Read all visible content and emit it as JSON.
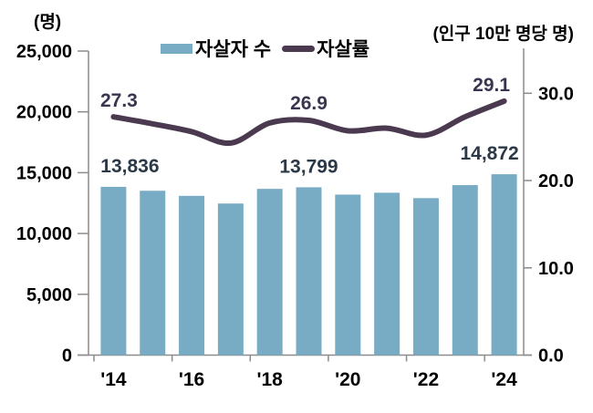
{
  "header": {
    "left_axis_unit": "(명)",
    "right_axis_unit": "(인구 10만 명당 명)"
  },
  "chart_data": {
    "type": "combo-bar-line",
    "categories": [
      "'14",
      "'15",
      "'16",
      "'17",
      "'18",
      "'19",
      "'20",
      "'21",
      "'22",
      "'23",
      "'24"
    ],
    "x_tick_labels": [
      "'14",
      "'16",
      "'18",
      "'20",
      "'22",
      "'24"
    ],
    "series": [
      {
        "name": "자살자 수",
        "type": "bar",
        "axis": "left",
        "color": "#78ACC4",
        "label_color": "#2A3847",
        "values": [
          13836,
          13513,
          13092,
          12463,
          13670,
          13799,
          13195,
          13352,
          12906,
          13978,
          14872
        ],
        "data_labels": [
          {
            "index": 0,
            "text": "13,836"
          },
          {
            "index": 5,
            "text": "13,799"
          },
          {
            "index": 10,
            "text": "14,872"
          }
        ]
      },
      {
        "name": "자살률",
        "type": "line",
        "axis": "right",
        "color": "#4A394F",
        "label_color": "#3B3450",
        "values": [
          27.3,
          26.5,
          25.6,
          24.3,
          26.6,
          26.9,
          25.7,
          26.0,
          25.2,
          27.3,
          29.1
        ],
        "data_labels": [
          {
            "index": 0,
            "text": "27.3"
          },
          {
            "index": 5,
            "text": "26.9"
          },
          {
            "index": 10,
            "text": "29.1"
          }
        ]
      }
    ],
    "left_axis": {
      "unit": "(명)",
      "min": 0,
      "max": 25000,
      "ticks": [
        "0",
        "5,000",
        "10,000",
        "15,000",
        "20,000",
        "25,000"
      ]
    },
    "right_axis": {
      "unit": "(인구 10만 명당 명)",
      "min": 0,
      "max": 30,
      "ticks": [
        "0.0",
        "10.0",
        "20.0",
        "30.0"
      ]
    },
    "grid": false,
    "legend_position": "top-center",
    "title": ""
  },
  "colors": {
    "axis_line": "#8C8C8C",
    "tick_text": "#000000"
  }
}
